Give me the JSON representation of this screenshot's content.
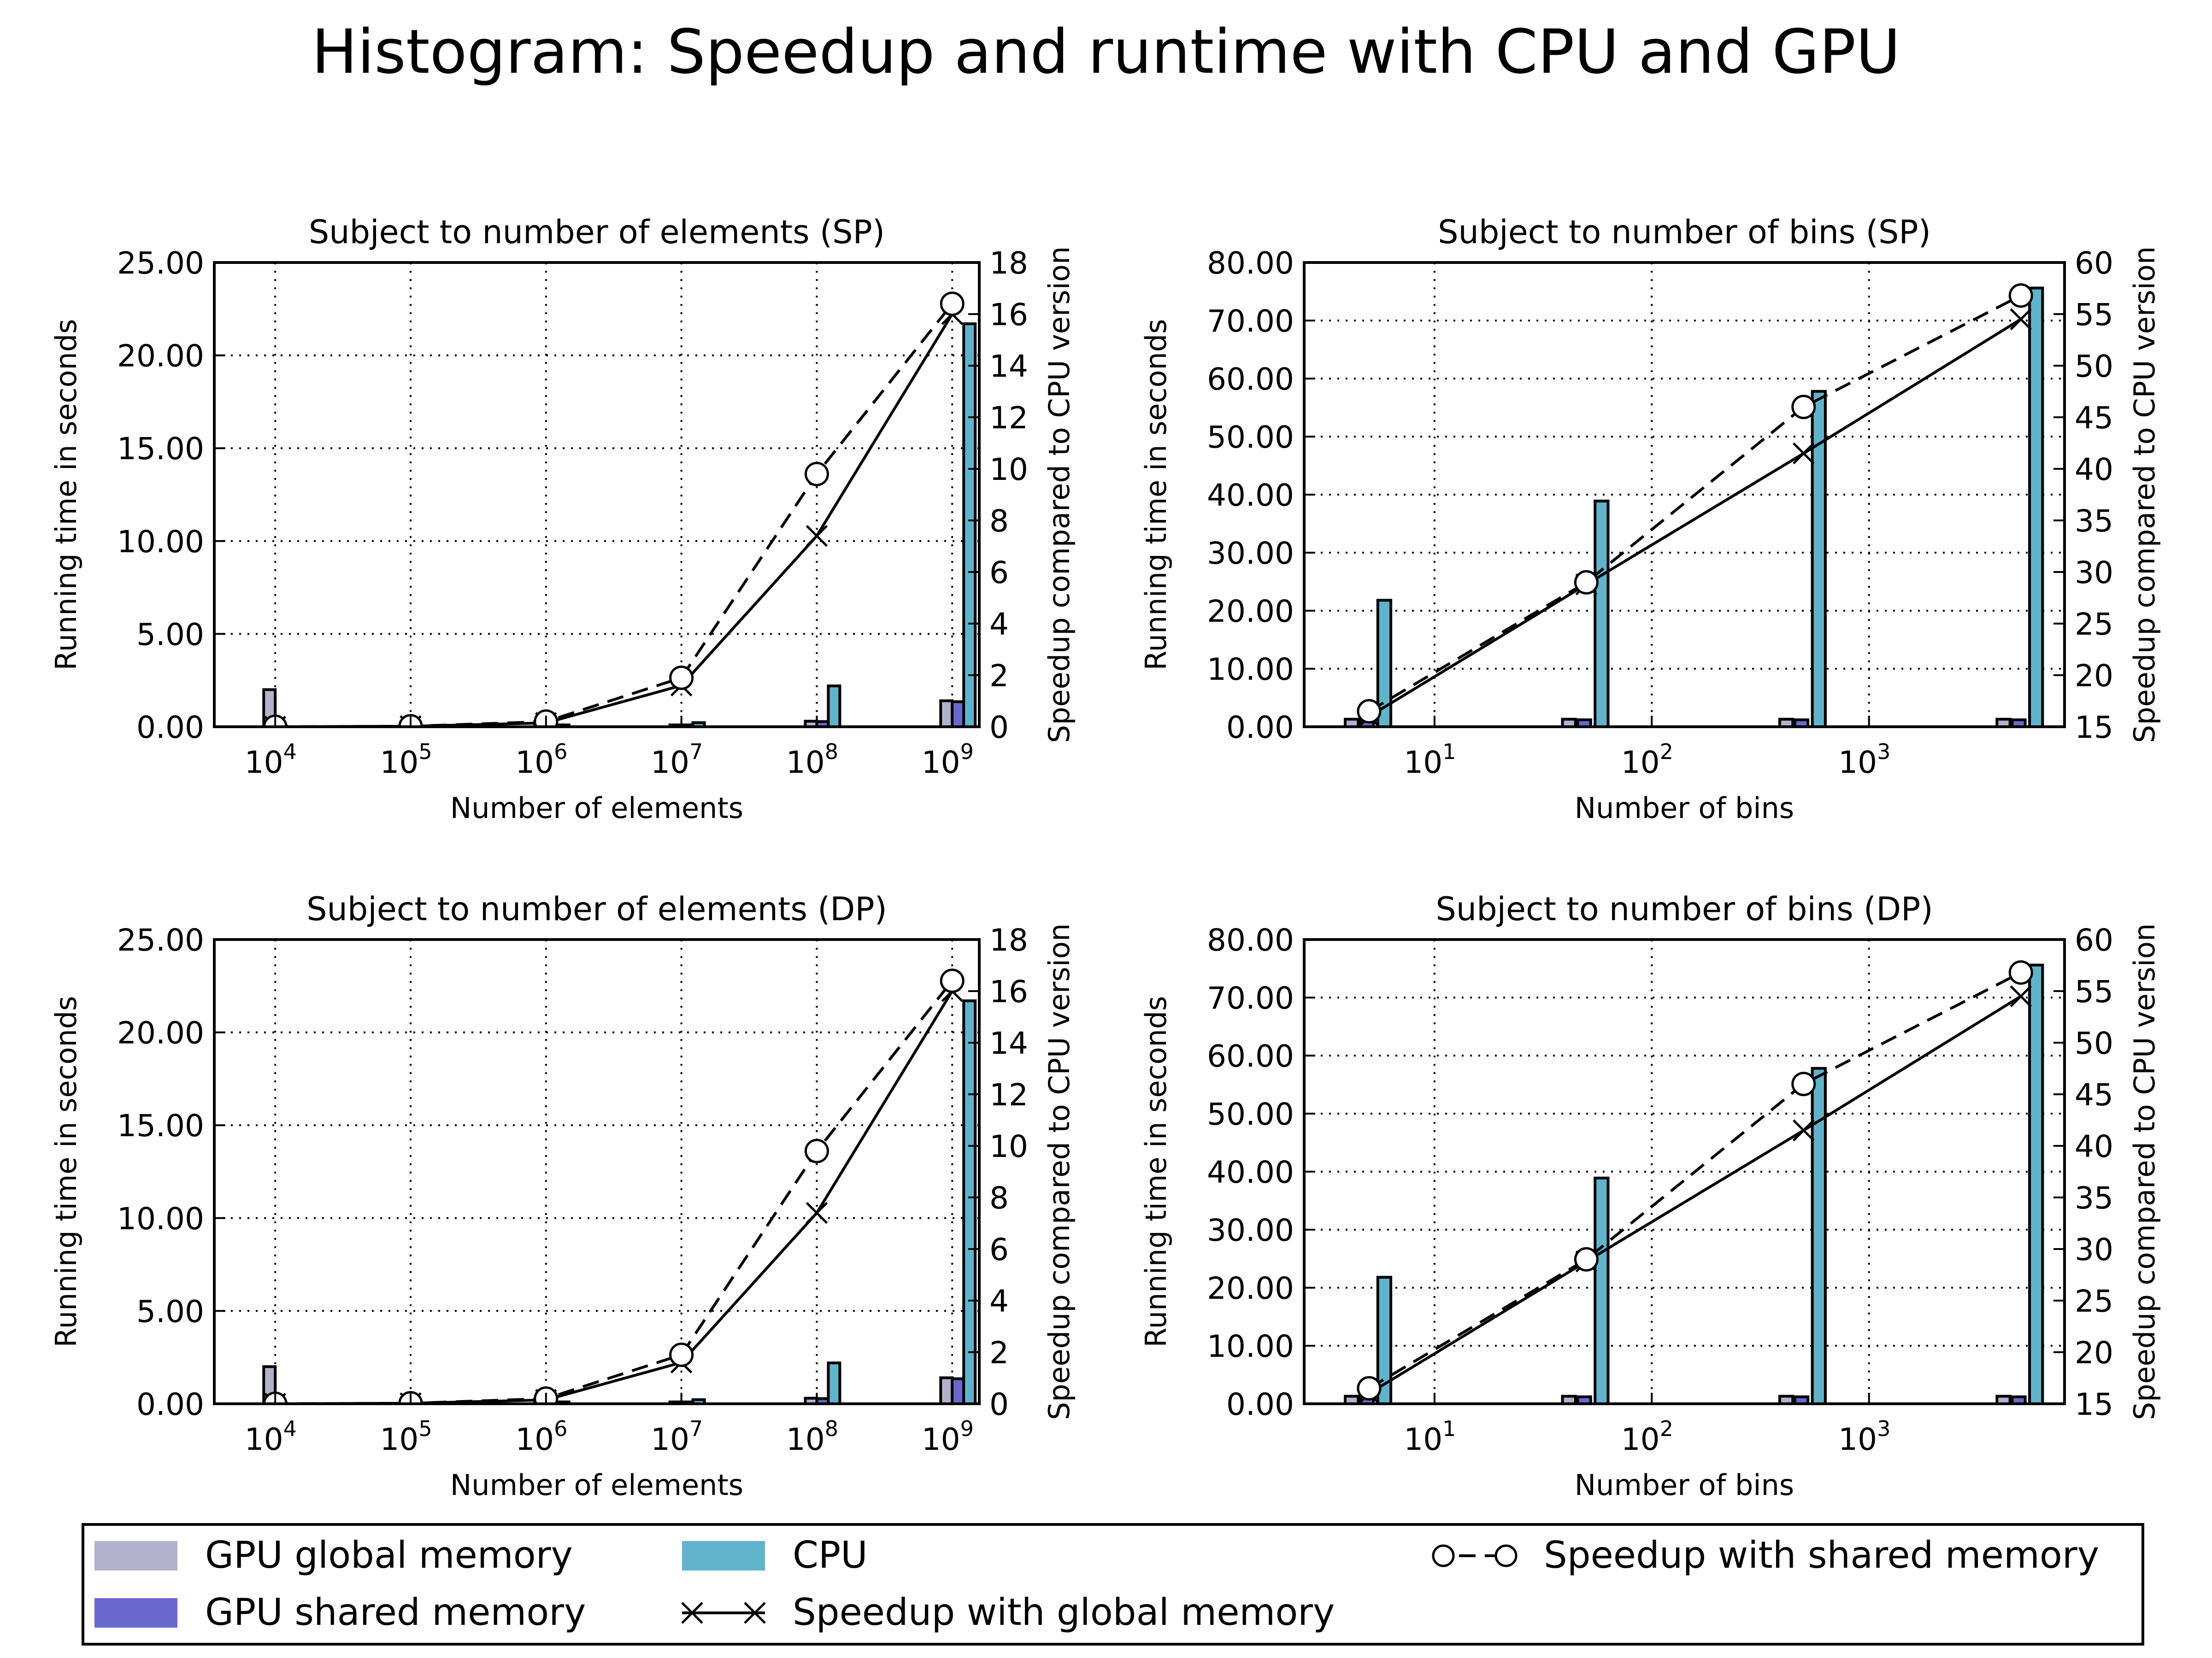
{
  "title": "Histogram: Speedup and runtime with CPU and GPU",
  "colors": {
    "gpu_global": "#b2b2cc",
    "gpu_shared": "#6a68cf",
    "cpu": "#61b3cc"
  },
  "legend": {
    "items": [
      {
        "label": "GPU global memory",
        "kind": "swatch",
        "color": "#b2b2cc"
      },
      {
        "label": "GPU shared memory",
        "kind": "swatch",
        "color": "#6a68cf"
      },
      {
        "label": "CPU",
        "kind": "swatch",
        "color": "#61b3cc"
      },
      {
        "label": "Speedup with global memory",
        "kind": "line-x"
      },
      {
        "label": "Speedup with shared memory",
        "kind": "line-o"
      }
    ]
  },
  "chart_data": [
    {
      "type": "bar",
      "title": "Subject to number of elements (SP)",
      "xlabel": "Number of elements",
      "ylabel": "Running time in seconds",
      "ylabel_right": "Speedup compared to CPU version",
      "x_scale": "log",
      "x_ticks": [
        {
          "base": "10",
          "exp": "4"
        },
        {
          "base": "10",
          "exp": "5"
        },
        {
          "base": "10",
          "exp": "6"
        },
        {
          "base": "10",
          "exp": "7"
        },
        {
          "base": "10",
          "exp": "8"
        },
        {
          "base": "10",
          "exp": "9"
        }
      ],
      "categories": [
        10000,
        100000,
        1000000,
        10000000,
        100000000,
        1000000000
      ],
      "ylim": [
        0,
        25
      ],
      "y_ticks": [
        "0.00",
        "5.00",
        "10.00",
        "15.00",
        "20.00",
        "25.00"
      ],
      "y2lim": [
        0,
        18
      ],
      "y2_ticks": [
        "0",
        "2",
        "4",
        "6",
        "8",
        "10",
        "12",
        "14",
        "16",
        "18"
      ],
      "grid": true,
      "bars": [
        {
          "name": "GPU global memory",
          "values": [
            2.0,
            0.03,
            0.04,
            0.1,
            0.3,
            1.4
          ]
        },
        {
          "name": "GPU shared memory",
          "values": [
            0.02,
            0.02,
            0.03,
            0.1,
            0.28,
            1.35
          ]
        },
        {
          "name": "CPU",
          "values": [
            0.0,
            0.0,
            0.1,
            0.22,
            2.2,
            21.7
          ]
        }
      ],
      "lines": [
        {
          "name": "Speedup with global memory",
          "values": [
            0.0,
            0.02,
            0.15,
            1.6,
            7.4,
            16.0
          ]
        },
        {
          "name": "Speedup with shared memory",
          "values": [
            0.0,
            0.02,
            0.2,
            1.9,
            9.8,
            16.4
          ]
        }
      ]
    },
    {
      "type": "bar",
      "title": "Subject to number of bins (SP)",
      "xlabel": "Number of bins",
      "ylabel": "Running time in seconds",
      "ylabel_right": "Speedup compared to CPU version",
      "x_scale": "log",
      "x_ticks": [
        {
          "base": "10",
          "exp": "1"
        },
        {
          "base": "10",
          "exp": "2"
        },
        {
          "base": "10",
          "exp": "3"
        }
      ],
      "categories": [
        5,
        50,
        500,
        5000
      ],
      "ylim": [
        0,
        80
      ],
      "y_ticks": [
        "0.00",
        "10.00",
        "20.00",
        "30.00",
        "40.00",
        "50.00",
        "60.00",
        "70.00",
        "80.00"
      ],
      "y2lim": [
        15,
        60
      ],
      "y2_ticks": [
        "15",
        "20",
        "25",
        "30",
        "35",
        "40",
        "45",
        "50",
        "55",
        "60"
      ],
      "grid": true,
      "bars": [
        {
          "name": "GPU global memory",
          "values": [
            1.3,
            1.3,
            1.3,
            1.3
          ]
        },
        {
          "name": "GPU shared memory",
          "values": [
            1.2,
            1.2,
            1.2,
            1.2
          ]
        },
        {
          "name": "CPU",
          "values": [
            21.8,
            38.9,
            57.8,
            75.6
          ]
        }
      ],
      "lines": [
        {
          "name": "Speedup with global memory",
          "values": [
            16.0,
            28.8,
            41.5,
            54.5
          ]
        },
        {
          "name": "Speedup with shared memory",
          "values": [
            16.5,
            29.0,
            46.0,
            56.8
          ]
        }
      ]
    },
    {
      "type": "bar",
      "title": "Subject to number of elements (DP)",
      "xlabel": "Number of elements",
      "ylabel": "Running time in seconds",
      "ylabel_right": "Speedup compared to CPU version",
      "x_scale": "log",
      "x_ticks": [
        {
          "base": "10",
          "exp": "4"
        },
        {
          "base": "10",
          "exp": "5"
        },
        {
          "base": "10",
          "exp": "6"
        },
        {
          "base": "10",
          "exp": "7"
        },
        {
          "base": "10",
          "exp": "8"
        },
        {
          "base": "10",
          "exp": "9"
        }
      ],
      "categories": [
        10000,
        100000,
        1000000,
        10000000,
        100000000,
        1000000000
      ],
      "ylim": [
        0,
        25
      ],
      "y_ticks": [
        "0.00",
        "5.00",
        "10.00",
        "15.00",
        "20.00",
        "25.00"
      ],
      "y2lim": [
        0,
        18
      ],
      "y2_ticks": [
        "0",
        "2",
        "4",
        "6",
        "8",
        "10",
        "12",
        "14",
        "16",
        "18"
      ],
      "grid": true,
      "bars": [
        {
          "name": "GPU global memory",
          "values": [
            2.0,
            0.03,
            0.04,
            0.1,
            0.3,
            1.4
          ]
        },
        {
          "name": "GPU shared memory",
          "values": [
            0.02,
            0.02,
            0.03,
            0.1,
            0.28,
            1.35
          ]
        },
        {
          "name": "CPU",
          "values": [
            0.0,
            0.0,
            0.1,
            0.22,
            2.2,
            21.7
          ]
        }
      ],
      "lines": [
        {
          "name": "Speedup with global memory",
          "values": [
            0.0,
            0.02,
            0.15,
            1.6,
            7.4,
            16.0
          ]
        },
        {
          "name": "Speedup with shared memory",
          "values": [
            0.0,
            0.02,
            0.2,
            1.9,
            9.8,
            16.4
          ]
        }
      ]
    },
    {
      "type": "bar",
      "title": "Subject to number of bins (DP)",
      "xlabel": "Number of bins",
      "ylabel": "Running time in seconds",
      "ylabel_right": "Speedup compared to CPU version",
      "x_scale": "log",
      "x_ticks": [
        {
          "base": "10",
          "exp": "1"
        },
        {
          "base": "10",
          "exp": "2"
        },
        {
          "base": "10",
          "exp": "3"
        }
      ],
      "categories": [
        5,
        50,
        500,
        5000
      ],
      "ylim": [
        0,
        80
      ],
      "y_ticks": [
        "0.00",
        "10.00",
        "20.00",
        "30.00",
        "40.00",
        "50.00",
        "60.00",
        "70.00",
        "80.00"
      ],
      "y2lim": [
        15,
        60
      ],
      "y2_ticks": [
        "15",
        "20",
        "25",
        "30",
        "35",
        "40",
        "45",
        "50",
        "55",
        "60"
      ],
      "grid": true,
      "bars": [
        {
          "name": "GPU global memory",
          "values": [
            1.3,
            1.3,
            1.3,
            1.3
          ]
        },
        {
          "name": "GPU shared memory",
          "values": [
            1.2,
            1.2,
            1.2,
            1.2
          ]
        },
        {
          "name": "CPU",
          "values": [
            21.8,
            38.9,
            57.8,
            75.6
          ]
        }
      ],
      "lines": [
        {
          "name": "Speedup with global memory",
          "values": [
            16.0,
            28.8,
            41.5,
            54.5
          ]
        },
        {
          "name": "Speedup with shared memory",
          "values": [
            16.5,
            29.0,
            46.0,
            56.8
          ]
        }
      ]
    }
  ]
}
